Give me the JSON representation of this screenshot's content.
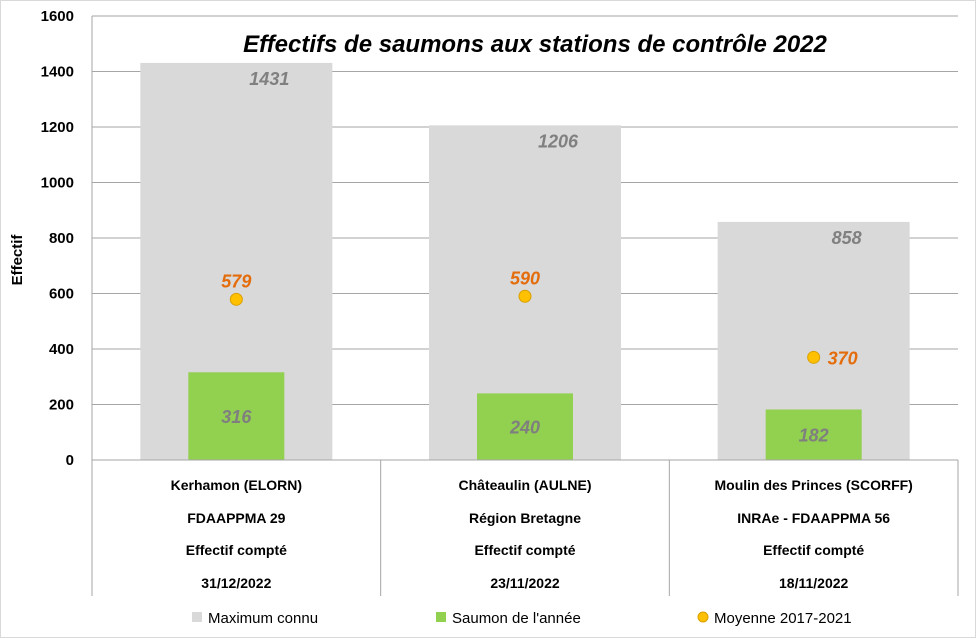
{
  "chart_data": {
    "type": "bar",
    "title": "Effectifs de saumons aux stations de contrôle 2022",
    "ylabel": "Effectif",
    "ylim": [
      0,
      1600
    ],
    "yticks": [
      0,
      200,
      400,
      600,
      800,
      1000,
      1200,
      1400,
      1600
    ],
    "grid": true,
    "legend_position": "bottom",
    "categories": [
      {
        "lines": [
          "Kerhamon (ELORN)",
          "FDAAPPMA 29",
          "Effectif compté",
          "31/12/2022"
        ]
      },
      {
        "lines": [
          "Châteaulin (AULNE)",
          "Région Bretagne",
          "Effectif compté",
          "23/11/2022"
        ]
      },
      {
        "lines": [
          "Moulin des Princes (SCORFF)",
          "INRAe - FDAAPPMA 56",
          "Effectif compté",
          "18/11/2022"
        ]
      }
    ],
    "series": [
      {
        "name": "Maximum connu",
        "kind": "bar",
        "color": "#d9d9d9",
        "values": [
          1431,
          1206,
          858
        ]
      },
      {
        "name": "Saumon de l'année",
        "kind": "bar",
        "color": "#92d050",
        "values": [
          316,
          240,
          182
        ]
      },
      {
        "name": "Moyenne 2017-2021",
        "kind": "point",
        "color": "#ffc000",
        "values": [
          579,
          590,
          370
        ]
      }
    ]
  }
}
